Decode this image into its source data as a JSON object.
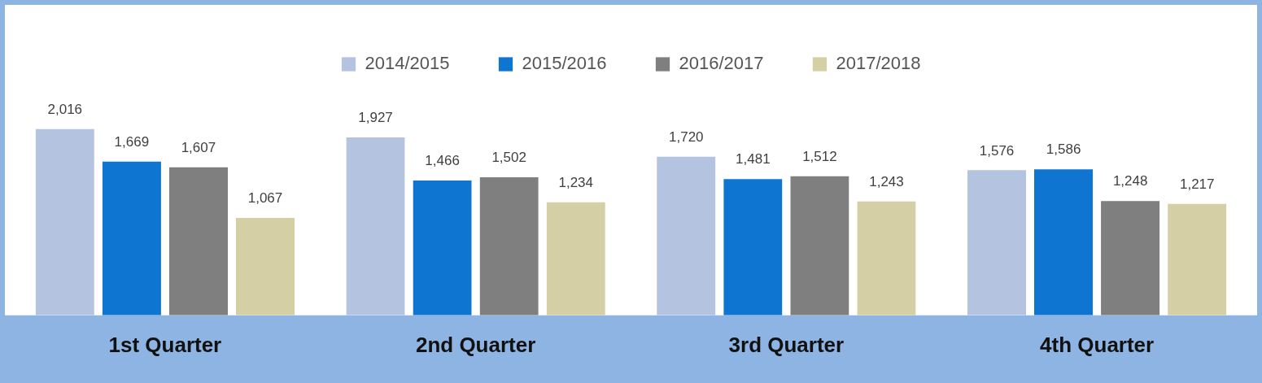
{
  "chart_data": {
    "type": "bar",
    "categories": [
      "1st Quarter",
      "2nd Quarter",
      "3rd Quarter",
      "4th Quarter"
    ],
    "series": [
      {
        "name": "2014/2015",
        "color": "#b4c3e0",
        "values": [
          2016,
          1927,
          1720,
          1576
        ],
        "value_labels": [
          "2,016",
          "1,927",
          "1,720",
          "1,576"
        ]
      },
      {
        "name": "2015/2016",
        "color": "#0e76d0",
        "values": [
          1669,
          1466,
          1481,
          1586
        ],
        "value_labels": [
          "1,669",
          "1,466",
          "1,481",
          "1,586"
        ]
      },
      {
        "name": "2016/2017",
        "color": "#7f7f7f",
        "values": [
          1607,
          1502,
          1512,
          1248
        ],
        "value_labels": [
          "1,607",
          "1,502",
          "1,512",
          "1,248"
        ]
      },
      {
        "name": "2017/2018",
        "color": "#d4cfa4",
        "values": [
          1067,
          1234,
          1243,
          1217
        ],
        "value_labels": [
          "1,067",
          "1,234",
          "1,243",
          "1,217"
        ]
      }
    ],
    "legend": "top",
    "grid": false
  }
}
